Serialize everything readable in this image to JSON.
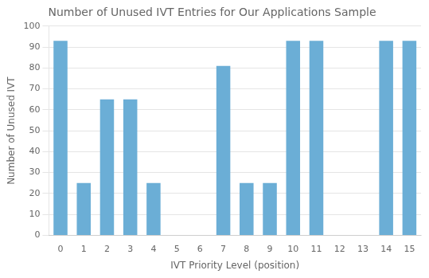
{
  "chart_data": {
    "type": "bar",
    "title": "Number of Unused IVT Entries for Our Applications Sample",
    "xlabel": "IVT Priority Level (position)",
    "ylabel": "Number of Unused IVT",
    "categories": [
      "0",
      "1",
      "2",
      "3",
      "4",
      "5",
      "6",
      "7",
      "8",
      "9",
      "10",
      "11",
      "12",
      "13",
      "14",
      "15"
    ],
    "values": [
      93,
      25,
      65,
      65,
      25,
      0,
      0,
      81,
      25,
      25,
      93,
      93,
      0,
      0,
      93,
      93
    ],
    "color": "#6baed6",
    "ylim": [
      0,
      100
    ],
    "yticks": [
      0,
      10,
      20,
      30,
      40,
      50,
      60,
      70,
      80,
      90,
      100
    ],
    "grid": true
  }
}
